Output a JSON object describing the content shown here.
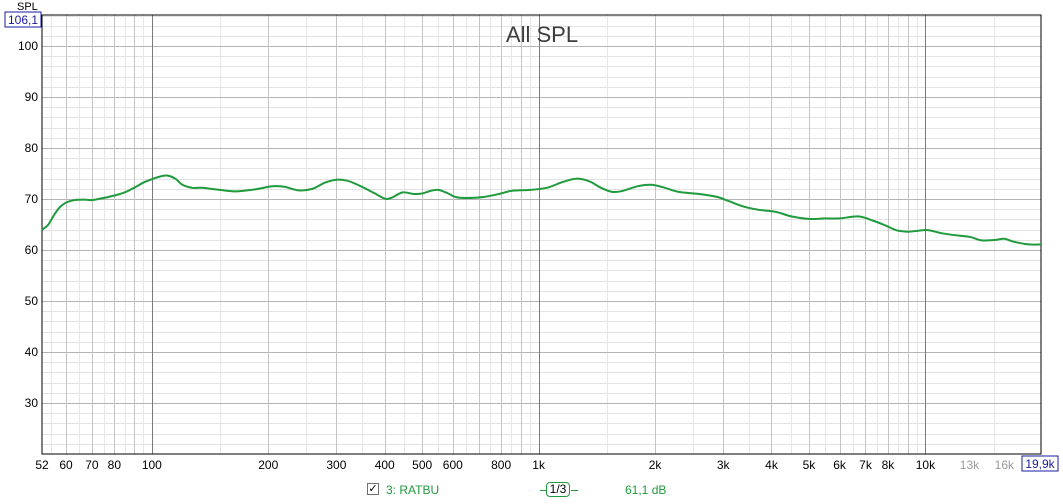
{
  "chart_data": {
    "type": "line",
    "title": "All SPL",
    "ylabel": "SPL",
    "x_scale": "log",
    "xlim": [
      52,
      19900
    ],
    "ylim": [
      20,
      106.1
    ],
    "y_ticks": [
      30,
      40,
      50,
      60,
      70,
      80,
      90,
      100
    ],
    "y_max_label": "106,1",
    "x_ticks": [
      {
        "value": 52,
        "label": "52"
      },
      {
        "value": 60,
        "label": "60"
      },
      {
        "value": 70,
        "label": "70"
      },
      {
        "value": 80,
        "label": "80"
      },
      {
        "value": 100,
        "label": "100"
      },
      {
        "value": 200,
        "label": "200"
      },
      {
        "value": 300,
        "label": "300"
      },
      {
        "value": 400,
        "label": "400"
      },
      {
        "value": 500,
        "label": "500"
      },
      {
        "value": 600,
        "label": "600"
      },
      {
        "value": 800,
        "label": "800"
      },
      {
        "value": 1000,
        "label": "1k"
      },
      {
        "value": 2000,
        "label": "2k"
      },
      {
        "value": 3000,
        "label": "3k"
      },
      {
        "value": 4000,
        "label": "4k"
      },
      {
        "value": 5000,
        "label": "5k"
      },
      {
        "value": 6000,
        "label": "6k"
      },
      {
        "value": 7000,
        "label": "7k"
      },
      {
        "value": 8000,
        "label": "8k"
      },
      {
        "value": 10000,
        "label": "10k"
      },
      {
        "value": 13000,
        "label": "13k",
        "dim": true
      },
      {
        "value": 16000,
        "label": "16k",
        "dim": true
      }
    ],
    "x_max_label": "19,9k",
    "grid": true,
    "series": [
      {
        "name": "3: RATBU",
        "color": "#1f9a3c",
        "points": [
          [
            52,
            64.0
          ],
          [
            54,
            65.0
          ],
          [
            56,
            67.0
          ],
          [
            58,
            68.5
          ],
          [
            60,
            69.3
          ],
          [
            63,
            69.8
          ],
          [
            67,
            69.9
          ],
          [
            70,
            69.8
          ],
          [
            75,
            70.2
          ],
          [
            80,
            70.7
          ],
          [
            85,
            71.3
          ],
          [
            90,
            72.2
          ],
          [
            95,
            73.2
          ],
          [
            100,
            73.9
          ],
          [
            106,
            74.5
          ],
          [
            110,
            74.6
          ],
          [
            115,
            74.0
          ],
          [
            120,
            72.8
          ],
          [
            127,
            72.2
          ],
          [
            135,
            72.2
          ],
          [
            150,
            71.8
          ],
          [
            165,
            71.5
          ],
          [
            185,
            71.9
          ],
          [
            205,
            72.5
          ],
          [
            220,
            72.4
          ],
          [
            240,
            71.7
          ],
          [
            260,
            72.0
          ],
          [
            280,
            73.2
          ],
          [
            300,
            73.8
          ],
          [
            320,
            73.6
          ],
          [
            345,
            72.6
          ],
          [
            375,
            71.2
          ],
          [
            400,
            70.1
          ],
          [
            415,
            70.2
          ],
          [
            445,
            71.3
          ],
          [
            475,
            71.0
          ],
          [
            500,
            71.1
          ],
          [
            525,
            71.6
          ],
          [
            550,
            71.8
          ],
          [
            580,
            71.2
          ],
          [
            610,
            70.4
          ],
          [
            650,
            70.2
          ],
          [
            720,
            70.4
          ],
          [
            790,
            71.0
          ],
          [
            850,
            71.6
          ],
          [
            950,
            71.8
          ],
          [
            1050,
            72.2
          ],
          [
            1150,
            73.3
          ],
          [
            1250,
            74.0
          ],
          [
            1350,
            73.5
          ],
          [
            1450,
            72.2
          ],
          [
            1550,
            71.4
          ],
          [
            1650,
            71.6
          ],
          [
            1800,
            72.5
          ],
          [
            1950,
            72.8
          ],
          [
            2100,
            72.3
          ],
          [
            2300,
            71.4
          ],
          [
            2600,
            71.0
          ],
          [
            2900,
            70.4
          ],
          [
            3100,
            69.6
          ],
          [
            3400,
            68.5
          ],
          [
            3700,
            67.9
          ],
          [
            4100,
            67.5
          ],
          [
            4500,
            66.6
          ],
          [
            5000,
            66.1
          ],
          [
            5500,
            66.2
          ],
          [
            6000,
            66.2
          ],
          [
            6700,
            66.6
          ],
          [
            7300,
            65.8
          ],
          [
            7900,
            64.8
          ],
          [
            8400,
            63.9
          ],
          [
            9000,
            63.6
          ],
          [
            9600,
            63.8
          ],
          [
            10200,
            63.9
          ],
          [
            11000,
            63.3
          ],
          [
            12000,
            62.9
          ],
          [
            13000,
            62.6
          ],
          [
            14000,
            61.9
          ],
          [
            15200,
            62.0
          ],
          [
            16000,
            62.2
          ],
          [
            17000,
            61.6
          ],
          [
            18500,
            61.1
          ],
          [
            19900,
            61.1
          ]
        ]
      }
    ]
  },
  "legend": {
    "entry_name": "3: RATBU",
    "checked": true,
    "check_mark": "✓",
    "smoothing_label": "1/3",
    "cursor_value": "61,1 dB"
  }
}
